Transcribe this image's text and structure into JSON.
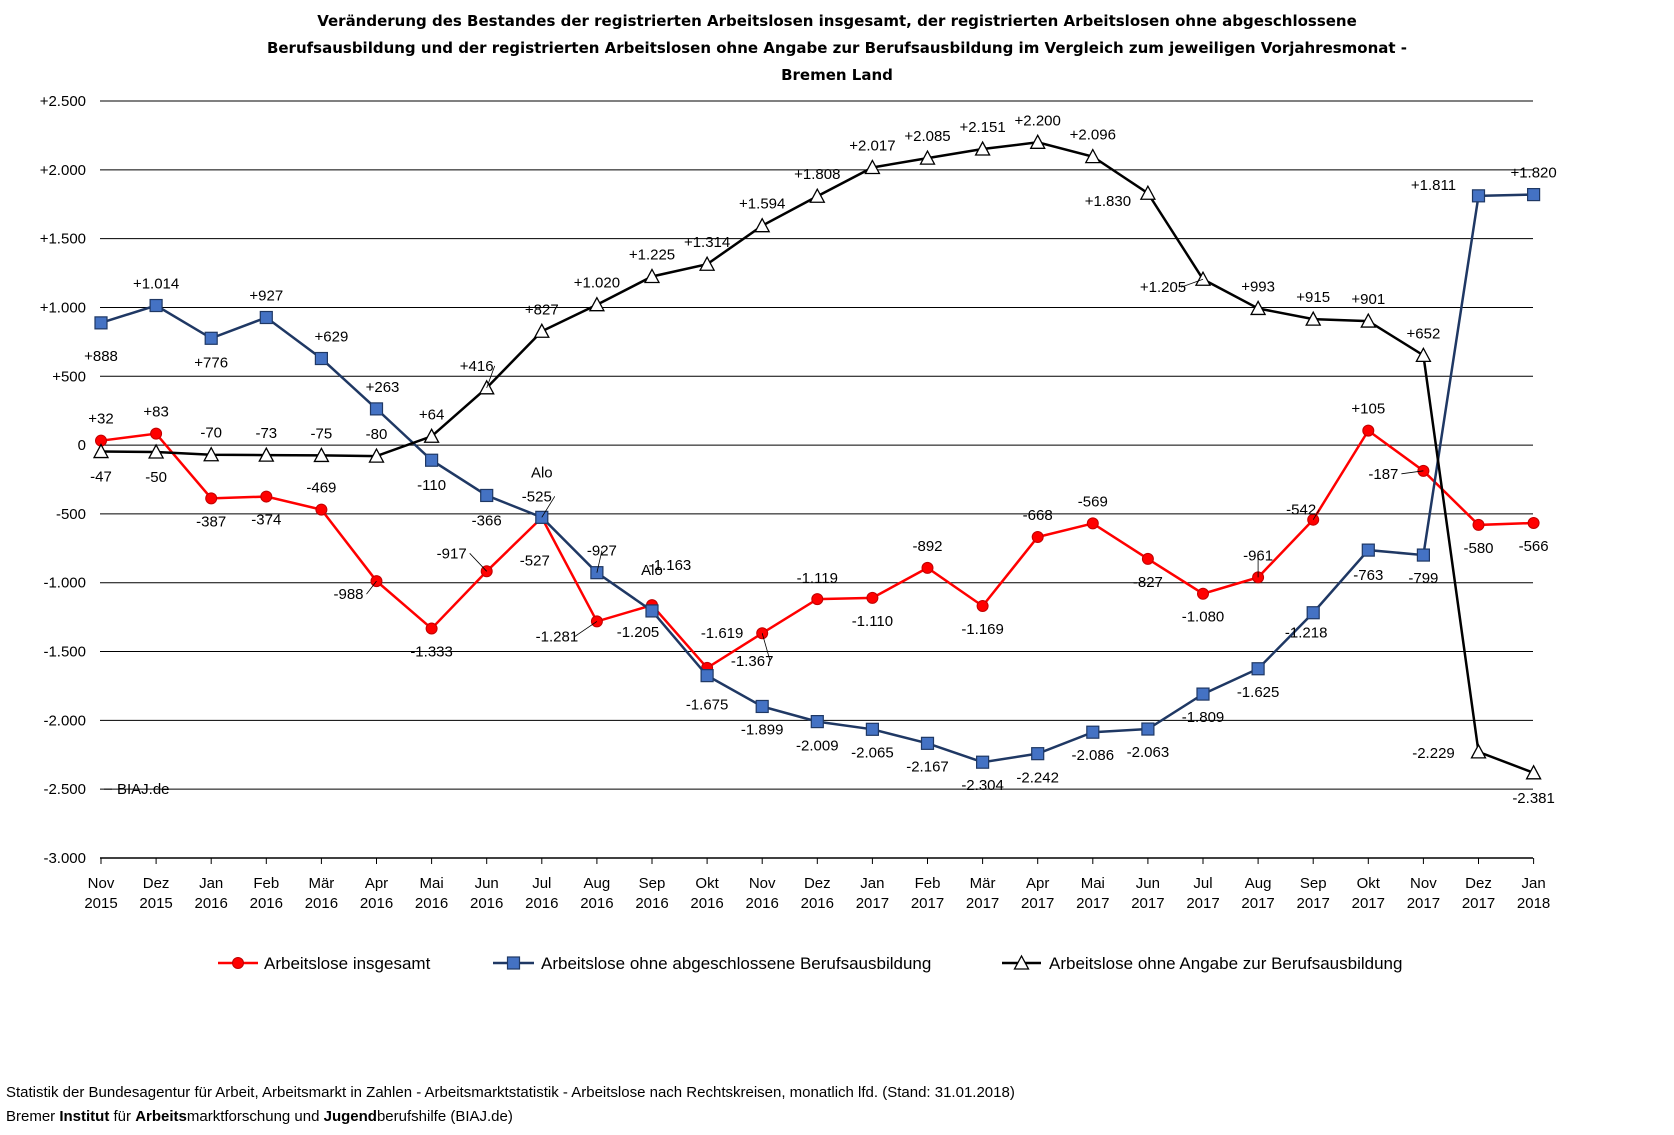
{
  "chart_data": {
    "type": "line",
    "title": [
      "Veränderung des Bestandes der registrierten Arbeitslosen insgesamt, der registrierten Arbeitslosen ohne abgeschlossene",
      "Berufsausbildung und der registrierten Arbeitslosen ohne Angabe zur Berufsausbildung im Vergleich zum jeweiligen Vorjahresmonat -",
      "Bremen Land"
    ],
    "categories": [
      [
        "Nov",
        "2015"
      ],
      [
        "Dez",
        "2015"
      ],
      [
        "Jan",
        "2016"
      ],
      [
        "Feb",
        "2016"
      ],
      [
        "Mär",
        "2016"
      ],
      [
        "Apr",
        "2016"
      ],
      [
        "Mai",
        "2016"
      ],
      [
        "Jun",
        "2016"
      ],
      [
        "Jul",
        "2016"
      ],
      [
        "Aug",
        "2016"
      ],
      [
        "Sep",
        "2016"
      ],
      [
        "Okt",
        "2016"
      ],
      [
        "Nov",
        "2016"
      ],
      [
        "Dez",
        "2016"
      ],
      [
        "Jan",
        "2017"
      ],
      [
        "Feb",
        "2017"
      ],
      [
        "Mär",
        "2017"
      ],
      [
        "Apr",
        "2017"
      ],
      [
        "Mai",
        "2017"
      ],
      [
        "Jun",
        "2017"
      ],
      [
        "Jul",
        "2017"
      ],
      [
        "Aug",
        "2017"
      ],
      [
        "Sep",
        "2017"
      ],
      [
        "Okt",
        "2017"
      ],
      [
        "Nov",
        "2017"
      ],
      [
        "Dez",
        "2017"
      ],
      [
        "Jan",
        "2018"
      ]
    ],
    "ylim": [
      -3000,
      2500
    ],
    "yticks": [
      2500,
      2000,
      1500,
      1000,
      500,
      0,
      -500,
      -1000,
      -1500,
      -2000,
      -2500,
      -3000
    ],
    "ytick_labels": [
      "+2.500",
      "+2.000",
      "+1.500",
      "+1.000",
      "+500",
      "0",
      "-500",
      "-1.000",
      "-1.500",
      "-2.000",
      "-2.500",
      "-3.000"
    ],
    "grid": true,
    "legend_position": "bottom",
    "series": [
      {
        "name": "Arbeitslose insgesamt",
        "color": "#ff0000",
        "marker": "circle",
        "values": [
          32,
          83,
          -387,
          -374,
          -469,
          -988,
          -1333,
          -917,
          -527,
          -1281,
          -1163,
          -1619,
          -1367,
          -1119,
          -1110,
          -892,
          -1169,
          -668,
          -569,
          -827,
          -1080,
          -961,
          -542,
          105,
          -187,
          -580,
          -566
        ],
        "labels": [
          "+32",
          "+83",
          "-387",
          "-374",
          "-469",
          "-988",
          "-1.333",
          "-917",
          "-527",
          "-1.281",
          "-1.163",
          "-1.619",
          "-1.367",
          "-1.119",
          "-1.110",
          "-892",
          "-1.169",
          "-668",
          "-569",
          "-827",
          "-1.080",
          "-961",
          "-542",
          "+105",
          "-187",
          "-580",
          "-566"
        ]
      },
      {
        "name": "Arbeitslose ohne abgeschlossene Berufsausbildung",
        "color": "#1f3864",
        "marker_fill": "#4472c4",
        "marker": "square",
        "values": [
          888,
          1014,
          776,
          927,
          629,
          263,
          -110,
          -366,
          -525,
          -927,
          -1205,
          -1675,
          -1899,
          -2009,
          -2065,
          -2167,
          -2304,
          -2242,
          -2086,
          -2063,
          -1809,
          -1625,
          -1218,
          -763,
          -799,
          1811,
          1820
        ],
        "labels": [
          "+888",
          "+1.014",
          "+776",
          "+927",
          "+629",
          "+263",
          "-110",
          "-366",
          "-525",
          "-927",
          "-1.205",
          "-1.675",
          "-1.899",
          "-2.009",
          "-2.065",
          "-2.167",
          "-2.304",
          "-2.242",
          "-2.086",
          "-2.063",
          "-1.809",
          "-1.625",
          "-1.218",
          "-763",
          "-799",
          "+1.811",
          "+1.820"
        ]
      },
      {
        "name": "Arbeitslose ohne Angabe zur Berufsausbildung",
        "color": "#000000",
        "marker": "triangle",
        "values": [
          -47,
          -50,
          -70,
          -73,
          -75,
          -80,
          64,
          416,
          827,
          1020,
          1225,
          1314,
          1594,
          1808,
          2017,
          2085,
          2151,
          2200,
          2096,
          1830,
          1205,
          993,
          915,
          901,
          652,
          -2229,
          -2381
        ],
        "labels": [
          "-47",
          "-50",
          "-70",
          "-73",
          "-75",
          "-80",
          "+64",
          "+416",
          "+827",
          "+1.020",
          "+1.225",
          "+1.314",
          "+1.594",
          "+1.808",
          "+2.017",
          "+2.085",
          "+2.151",
          "+2.200",
          "+2.096",
          "+1.830",
          "+1.205",
          "+993",
          "+915",
          "+901",
          "+652",
          "-2.229",
          "-2.381"
        ]
      }
    ],
    "annotations": [
      "Alo",
      "Alo",
      "BIAJ.de"
    ]
  },
  "source": {
    "line1": "Statistik der Bundesagentur für Arbeit, Arbeitsmarkt in Zahlen - Arbeitsmarktstatistik - Arbeitslose nach Rechtskreisen, monatlich lfd. (Stand: 31.01.2018)",
    "line2_parts": [
      {
        "text": "Bremer ",
        "bold": false
      },
      {
        "text": "Institut",
        "bold": true
      },
      {
        "text": " für ",
        "bold": false
      },
      {
        "text": "Arbeits",
        "bold": true
      },
      {
        "text": "marktforschung und ",
        "bold": false
      },
      {
        "text": "Jugend",
        "bold": true
      },
      {
        "text": "berufshilfe (BIAJ.de)",
        "bold": false
      }
    ]
  }
}
